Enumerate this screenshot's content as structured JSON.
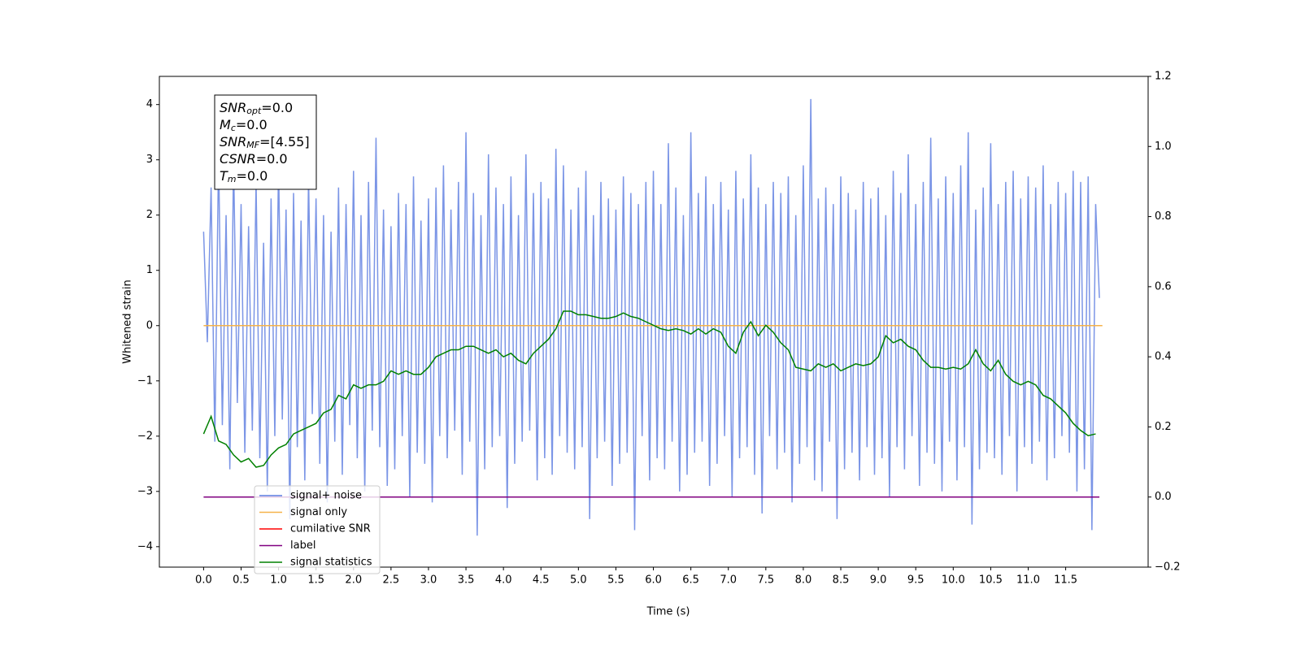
{
  "chart_data": {
    "type": "line",
    "xlabel": "Time (s)",
    "ylabel": "Whitened strain",
    "xlim": [
      -0.59,
      12.6
    ],
    "ylim": [
      -4.37,
      4.51
    ],
    "y2lim": [
      -0.2,
      1.2
    ],
    "xticks": [
      {
        "value": 0,
        "label": "0.0"
      },
      {
        "value": 0.5,
        "label": "0.5"
      },
      {
        "value": 1,
        "label": "1.0"
      },
      {
        "value": 1.5,
        "label": "1.5"
      },
      {
        "value": 2,
        "label": "2.0"
      },
      {
        "value": 2.5,
        "label": "2.5"
      },
      {
        "value": 3,
        "label": "3.0"
      },
      {
        "value": 3.5,
        "label": "3.5"
      },
      {
        "value": 4,
        "label": "4.0"
      },
      {
        "value": 4.5,
        "label": "4.5"
      },
      {
        "value": 5,
        "label": "5.0"
      },
      {
        "value": 5.5,
        "label": "5.5"
      },
      {
        "value": 6,
        "label": "6.0"
      },
      {
        "value": 6.5,
        "label": "6.5"
      },
      {
        "value": 7,
        "label": "7.0"
      },
      {
        "value": 7.5,
        "label": "7.5"
      },
      {
        "value": 8,
        "label": "8.0"
      },
      {
        "value": 8.5,
        "label": "8.5"
      },
      {
        "value": 9,
        "label": "9.0"
      },
      {
        "value": 9.5,
        "label": "9.5"
      },
      {
        "value": 10,
        "label": "10.0"
      },
      {
        "value": 10.5,
        "label": "10.5"
      },
      {
        "value": 11,
        "label": "11.0"
      },
      {
        "value": 11.5,
        "label": "11.5"
      }
    ],
    "yticks": [
      {
        "value": -4,
        "label": "−4"
      },
      {
        "value": -3,
        "label": "−3"
      },
      {
        "value": -2,
        "label": "−2"
      },
      {
        "value": -1,
        "label": "−1"
      },
      0,
      1,
      2,
      3,
      4
    ],
    "y2ticks": [
      {
        "value": -0.2,
        "label": "−0.2"
      },
      {
        "value": 0,
        "label": "0.0"
      },
      0.2,
      0.4,
      0.6,
      0.8,
      {
        "value": 1,
        "label": "1.0"
      },
      1.2
    ],
    "legend": "lower left",
    "textbox": [
      {
        "main": "SNR",
        "sub": "opt",
        "rest": "=0.0"
      },
      {
        "main": "M",
        "sub": "c",
        "rest": "=0.0"
      },
      {
        "main": "SNR",
        "sub": "MF",
        "rest": "=[4.55]"
      },
      {
        "main": "CSNR",
        "rest": "=0.0"
      },
      {
        "main": "T",
        "sub": "m",
        "rest": "=0.0"
      }
    ],
    "series": [
      {
        "name": "signal+ noise",
        "color": "#5a7be0",
        "x": [
          0.0,
          0.05,
          0.1,
          0.15,
          0.2,
          0.25,
          0.3,
          0.35,
          0.4,
          0.45,
          0.5,
          0.55,
          0.6,
          0.65,
          0.7,
          0.75,
          0.8,
          0.85,
          0.9,
          0.95,
          1.0,
          1.05,
          1.1,
          1.15,
          1.2,
          1.25,
          1.3,
          1.35,
          1.4,
          1.45,
          1.5,
          1.55,
          1.6,
          1.65,
          1.7,
          1.75,
          1.8,
          1.85,
          1.9,
          1.95,
          2.0,
          2.05,
          2.1,
          2.15,
          2.2,
          2.25,
          2.3,
          2.35,
          2.4,
          2.45,
          2.5,
          2.55,
          2.6,
          2.65,
          2.7,
          2.75,
          2.8,
          2.85,
          2.9,
          2.95,
          3.0,
          3.05,
          3.1,
          3.15,
          3.2,
          3.25,
          3.3,
          3.35,
          3.4,
          3.45,
          3.5,
          3.55,
          3.6,
          3.65,
          3.7,
          3.75,
          3.8,
          3.85,
          3.9,
          3.95,
          4.0,
          4.05,
          4.1,
          4.15,
          4.2,
          4.25,
          4.3,
          4.35,
          4.4,
          4.45,
          4.5,
          4.55,
          4.6,
          4.65,
          4.7,
          4.75,
          4.8,
          4.85,
          4.9,
          4.95,
          5.0,
          5.05,
          5.1,
          5.15,
          5.2,
          5.25,
          5.3,
          5.35,
          5.4,
          5.45,
          5.5,
          5.55,
          5.6,
          5.65,
          5.7,
          5.75,
          5.8,
          5.85,
          5.9,
          5.95,
          6.0,
          6.05,
          6.1,
          6.15,
          6.2,
          6.25,
          6.3,
          6.35,
          6.4,
          6.45,
          6.5,
          6.55,
          6.6,
          6.65,
          6.7,
          6.75,
          6.8,
          6.85,
          6.9,
          6.95,
          7.0,
          7.05,
          7.1,
          7.15,
          7.2,
          7.25,
          7.3,
          7.35,
          7.4,
          7.45,
          7.5,
          7.55,
          7.6,
          7.65,
          7.7,
          7.75,
          7.8,
          7.85,
          7.9,
          7.95,
          8.0,
          8.05,
          8.1,
          8.15,
          8.2,
          8.25,
          8.3,
          8.35,
          8.4,
          8.45,
          8.5,
          8.55,
          8.6,
          8.65,
          8.7,
          8.75,
          8.8,
          8.85,
          8.9,
          8.95,
          9.0,
          9.05,
          9.1,
          9.15,
          9.2,
          9.25,
          9.3,
          9.35,
          9.4,
          9.45,
          9.5,
          9.55,
          9.6,
          9.65,
          9.7,
          9.75,
          9.8,
          9.85,
          9.9,
          9.95,
          10.0,
          10.05,
          10.1,
          10.15,
          10.2,
          10.25,
          10.3,
          10.35,
          10.4,
          10.45,
          10.5,
          10.55,
          10.6,
          10.65,
          10.7,
          10.75,
          10.8,
          10.85,
          10.9,
          10.95,
          11.0,
          11.05,
          11.1,
          11.15,
          11.2,
          11.25,
          11.3,
          11.35,
          11.4,
          11.45,
          11.5,
          11.55,
          11.6,
          11.65,
          11.7,
          11.75,
          11.8,
          11.85,
          11.9,
          11.95
        ],
        "values": [
          1.7,
          -0.3,
          2.5,
          -2.1,
          3.1,
          -1.8,
          2.0,
          -2.6,
          3.0,
          -1.4,
          2.2,
          -2.3,
          1.8,
          -1.9,
          2.6,
          -2.4,
          1.5,
          -3.0,
          2.3,
          -2.0,
          2.9,
          -1.7,
          2.1,
          -3.5,
          2.4,
          -2.2,
          1.9,
          -2.8,
          2.7,
          -1.6,
          2.3,
          -2.5,
          2.0,
          -3.2,
          1.7,
          -2.1,
          2.5,
          -2.7,
          2.2,
          -1.8,
          2.8,
          -2.4,
          2.0,
          -3.0,
          2.6,
          -1.9,
          3.4,
          -2.2,
          2.1,
          -2.9,
          1.8,
          -2.6,
          2.4,
          -2.0,
          2.2,
          -3.1,
          2.7,
          -2.3,
          1.9,
          -2.5,
          2.3,
          -3.2,
          2.5,
          -2.0,
          2.9,
          -2.4,
          2.1,
          -1.9,
          2.6,
          -2.7,
          3.5,
          -2.1,
          2.4,
          -3.8,
          2.0,
          -2.6,
          3.1,
          -2.2,
          2.5,
          -2.0,
          2.2,
          -3.3,
          2.7,
          -2.5,
          2.0,
          -2.1,
          3.1,
          -1.9,
          2.4,
          -2.8,
          2.6,
          -2.4,
          2.3,
          -2.7,
          3.2,
          -2.0,
          2.9,
          -2.3,
          2.1,
          -2.6,
          2.5,
          -2.2,
          2.8,
          -3.5,
          2.0,
          -2.4,
          2.6,
          -2.1,
          2.3,
          -2.9,
          2.1,
          -2.5,
          2.7,
          -2.3,
          2.4,
          -3.7,
          2.2,
          -2.0,
          2.6,
          -2.8,
          2.8,
          -2.4,
          2.2,
          -2.6,
          3.3,
          -2.1,
          2.5,
          -3.0,
          2.0,
          -2.7,
          3.5,
          -2.3,
          2.4,
          -2.1,
          2.7,
          -2.9,
          2.2,
          -2.5,
          2.6,
          -2.0,
          2.1,
          -3.1,
          2.8,
          -2.4,
          2.3,
          -2.2,
          3.1,
          -2.7,
          2.5,
          -3.4,
          2.2,
          -2.0,
          2.6,
          -2.6,
          2.4,
          -2.3,
          2.7,
          -3.2,
          2.0,
          -2.5,
          2.9,
          -2.2,
          4.1,
          -2.8,
          2.3,
          -3.0,
          2.5,
          -2.1,
          2.2,
          -3.5,
          2.7,
          -2.6,
          2.4,
          -2.3,
          2.1,
          -2.8,
          2.6,
          -2.2,
          2.3,
          -2.7,
          2.5,
          -2.4,
          2.0,
          -3.1,
          2.8,
          -2.2,
          2.4,
          -2.6,
          3.1,
          -2.0,
          2.2,
          -2.9,
          2.6,
          -2.3,
          3.4,
          -2.5,
          2.3,
          -3.0,
          2.7,
          -2.1,
          2.4,
          -2.8,
          2.9,
          -2.2,
          3.5,
          -3.6,
          2.1,
          -2.6,
          2.5,
          -2.3,
          3.3,
          -2.4,
          2.2,
          -2.7,
          2.6,
          -2.0,
          2.8,
          -3.0,
          2.3,
          -2.2,
          2.7,
          -2.5,
          2.5,
          -2.1,
          2.9,
          -2.8,
          2.2,
          -2.4,
          2.6,
          -2.0,
          2.4,
          -2.3,
          2.8,
          -3.0,
          2.6,
          -2.6,
          2.7,
          -3.7,
          2.2,
          0.5
        ]
      },
      {
        "name": "signal only",
        "color": "#f5b24a",
        "x": [
          0,
          11.99
        ],
        "values": [
          0,
          0
        ]
      },
      {
        "name": "cumilative SNR",
        "color": "#ff0000",
        "x": [],
        "values": []
      },
      {
        "name": "label",
        "color": "#800080",
        "axis": "y2",
        "x": [
          0,
          11.95
        ],
        "values": [
          0,
          0
        ]
      },
      {
        "name": "signal statistics",
        "color": "#008000",
        "axis": "y2",
        "x": [
          0.0,
          0.1,
          0.2,
          0.3,
          0.4,
          0.5,
          0.6,
          0.7,
          0.8,
          0.9,
          1.0,
          1.1,
          1.2,
          1.3,
          1.4,
          1.5,
          1.6,
          1.7,
          1.8,
          1.9,
          2.0,
          2.1,
          2.2,
          2.3,
          2.4,
          2.5,
          2.6,
          2.7,
          2.8,
          2.9,
          3.0,
          3.1,
          3.2,
          3.3,
          3.4,
          3.5,
          3.6,
          3.7,
          3.8,
          3.9,
          4.0,
          4.1,
          4.2,
          4.3,
          4.4,
          4.5,
          4.6,
          4.7,
          4.8,
          4.9,
          5.0,
          5.1,
          5.2,
          5.3,
          5.4,
          5.5,
          5.6,
          5.7,
          5.8,
          5.9,
          6.0,
          6.1,
          6.2,
          6.3,
          6.4,
          6.5,
          6.6,
          6.7,
          6.8,
          6.9,
          7.0,
          7.1,
          7.2,
          7.3,
          7.4,
          7.5,
          7.6,
          7.7,
          7.8,
          7.9,
          8.0,
          8.1,
          8.2,
          8.3,
          8.4,
          8.5,
          8.6,
          8.7,
          8.8,
          8.9,
          9.0,
          9.1,
          9.2,
          9.3,
          9.4,
          9.5,
          9.6,
          9.7,
          9.8,
          9.9,
          10.0,
          10.1,
          10.2,
          10.3,
          10.4,
          10.5,
          10.6,
          10.7,
          10.8,
          10.9,
          11.0,
          11.1,
          11.2,
          11.3,
          11.4,
          11.5,
          11.6,
          11.7,
          11.8,
          11.9
        ],
        "values": [
          0.18,
          0.23,
          0.16,
          0.15,
          0.12,
          0.1,
          0.11,
          0.085,
          0.09,
          0.12,
          0.14,
          0.15,
          0.18,
          0.19,
          0.2,
          0.21,
          0.24,
          0.25,
          0.29,
          0.28,
          0.32,
          0.31,
          0.32,
          0.32,
          0.33,
          0.36,
          0.35,
          0.36,
          0.35,
          0.35,
          0.37,
          0.4,
          0.41,
          0.42,
          0.42,
          0.43,
          0.43,
          0.42,
          0.41,
          0.42,
          0.4,
          0.41,
          0.39,
          0.38,
          0.41,
          0.43,
          0.45,
          0.48,
          0.53,
          0.53,
          0.52,
          0.52,
          0.515,
          0.51,
          0.51,
          0.515,
          0.525,
          0.515,
          0.51,
          0.5,
          0.49,
          0.48,
          0.475,
          0.48,
          0.475,
          0.465,
          0.48,
          0.465,
          0.48,
          0.47,
          0.43,
          0.41,
          0.47,
          0.5,
          0.46,
          0.49,
          0.47,
          0.44,
          0.42,
          0.37,
          0.365,
          0.36,
          0.38,
          0.37,
          0.38,
          0.36,
          0.37,
          0.38,
          0.375,
          0.38,
          0.4,
          0.46,
          0.44,
          0.45,
          0.43,
          0.42,
          0.39,
          0.37,
          0.37,
          0.365,
          0.37,
          0.365,
          0.38,
          0.42,
          0.38,
          0.36,
          0.39,
          0.35,
          0.33,
          0.32,
          0.33,
          0.32,
          0.29,
          0.28,
          0.26,
          0.24,
          0.21,
          0.19,
          0.175,
          0.18
        ]
      }
    ]
  }
}
